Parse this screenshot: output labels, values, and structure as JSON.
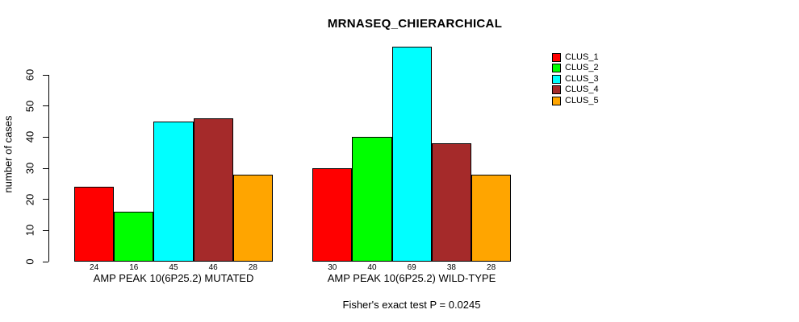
{
  "chart_data": {
    "type": "bar",
    "title": "MRNASEQ_CHIERARCHICAL",
    "ylabel": "number of cases",
    "ylim": [
      0,
      69
    ],
    "yticks": [
      0,
      10,
      20,
      30,
      40,
      50,
      60
    ],
    "grid": false,
    "legend_position": "right",
    "categories": [
      "AMP PEAK 10(6P25.2) MUTATED",
      "AMP PEAK 10(6P25.2) WILD-TYPE"
    ],
    "series": [
      {
        "name": "CLUS_1",
        "color": "#ff0000",
        "values": [
          24,
          30
        ]
      },
      {
        "name": "CLUS_2",
        "color": "#00ff00",
        "values": [
          16,
          40
        ]
      },
      {
        "name": "CLUS_3",
        "color": "#00ffff",
        "values": [
          45,
          69
        ]
      },
      {
        "name": "CLUS_4",
        "color": "#a52a2a",
        "values": [
          46,
          38
        ]
      },
      {
        "name": "CLUS_5",
        "color": "#ffa500",
        "values": [
          28,
          28
        ]
      }
    ],
    "bar_value_labels": true,
    "annotation": "Fisher's exact test P = 0.0245"
  }
}
